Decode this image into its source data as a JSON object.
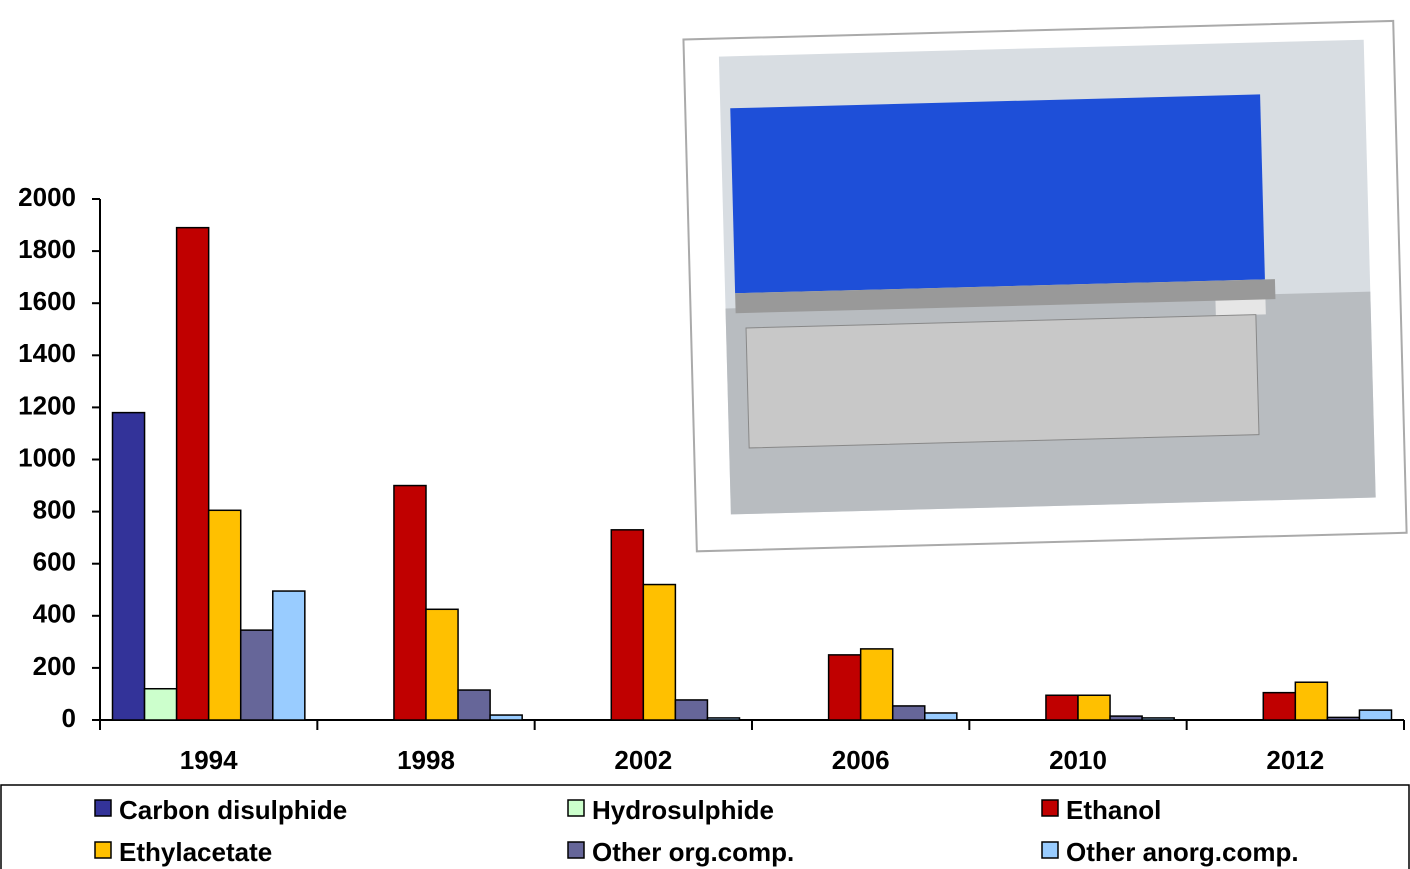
{
  "chart_data": {
    "type": "bar",
    "categories": [
      "1994",
      "1998",
      "2002",
      "2006",
      "2010",
      "2012"
    ],
    "series": [
      {
        "name": "Carbon disulphide",
        "color": "#333399",
        "values": [
          1180,
          0,
          0,
          0,
          0,
          0
        ]
      },
      {
        "name": "Hydrosulphide",
        "color": "#ccffcc",
        "values": [
          120,
          0,
          0,
          0,
          0,
          0
        ]
      },
      {
        "name": "Ethanol",
        "color": "#c00000",
        "values": [
          1890,
          900,
          730,
          250,
          95,
          105
        ]
      },
      {
        "name": "Ethylacetate",
        "color": "#ffc000",
        "values": [
          805,
          425,
          520,
          273,
          95,
          145
        ]
      },
      {
        "name": "Other org.comp.",
        "color": "#666699",
        "values": [
          345,
          115,
          77,
          54,
          15,
          10
        ]
      },
      {
        "name": "Other anorg.comp.",
        "color": "#99ccff",
        "values": [
          495,
          19,
          8,
          27,
          8,
          38
        ]
      }
    ],
    "ylim": [
      0,
      2000
    ],
    "yticks": [
      0,
      200,
      400,
      600,
      800,
      1000,
      1200,
      1400,
      1600,
      1800,
      2000
    ],
    "legend": "bottom"
  }
}
